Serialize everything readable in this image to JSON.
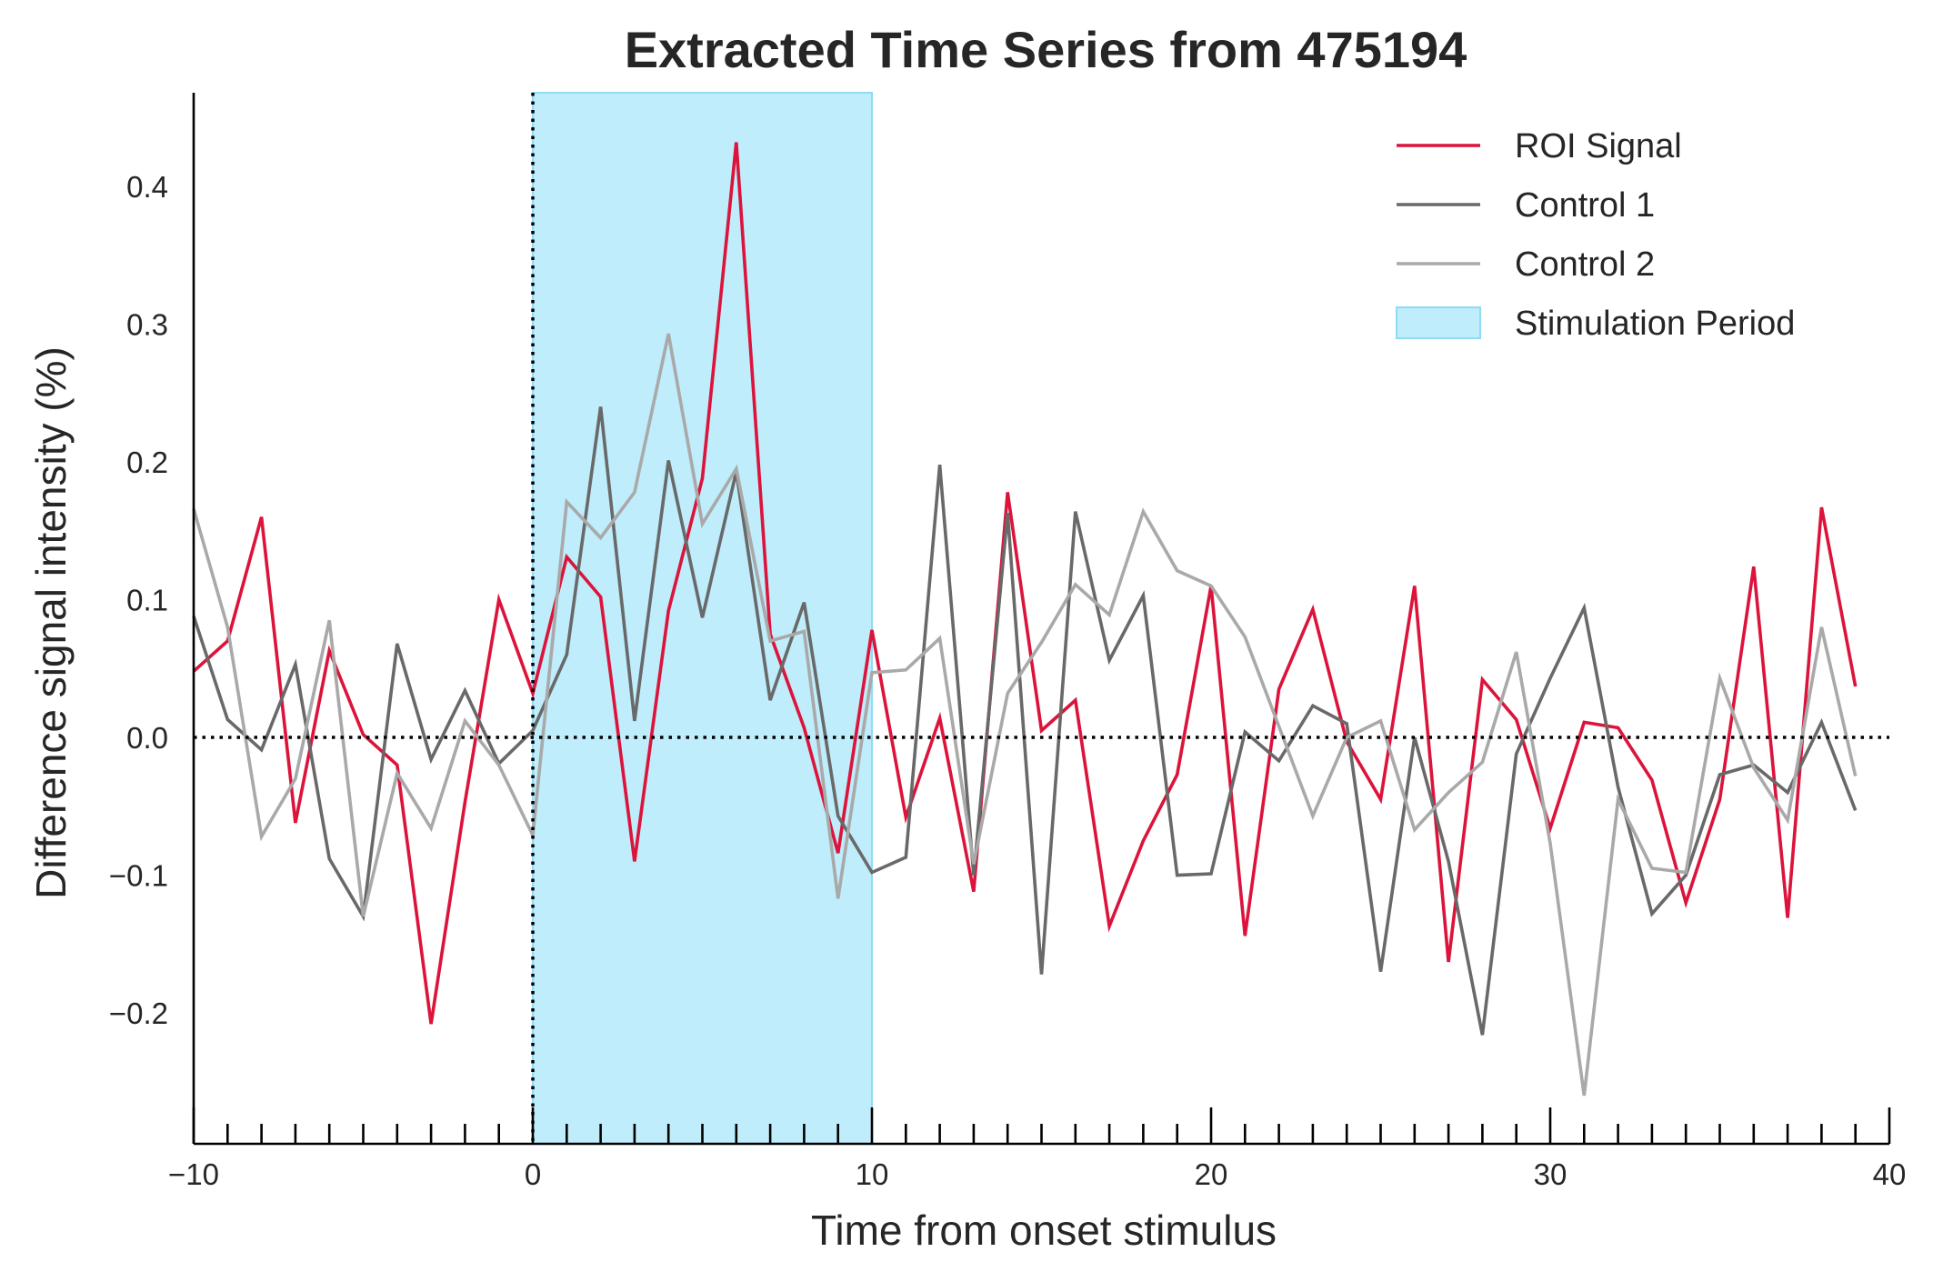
{
  "chart_data": {
    "type": "line",
    "title": "Extracted Time Series from 475194",
    "xlabel": "Time from onset stimulus",
    "ylabel": "Difference signal intensity (%)",
    "xlim": [
      -10,
      40
    ],
    "ylim": [
      -0.295,
      0.468
    ],
    "x_ticks": [
      -10,
      0,
      10,
      20,
      30,
      40
    ],
    "x_tick_labels": [
      "−10",
      "0",
      "10",
      "20",
      "30",
      "40"
    ],
    "y_ticks": [
      -0.2,
      -0.1,
      0.0,
      0.1,
      0.2,
      0.3,
      0.4
    ],
    "y_tick_labels": [
      "−0.2",
      "−0.1",
      "0.0",
      "0.1",
      "0.2",
      "0.3",
      "0.4"
    ],
    "minor_x_ticks_interval": 1,
    "reference_lines": {
      "horizontal_y": 0,
      "vertical_x": 0,
      "style": "dotted",
      "color": "#000000"
    },
    "shaded_region": {
      "label": "Stimulation Period",
      "x_start": 0,
      "x_end": 10,
      "color": "#bfedfb",
      "edge_color": "#8fdcf5"
    },
    "legend_position": "top-right",
    "grid": false,
    "x": [
      -10,
      -9,
      -8,
      -7,
      -6,
      -5,
      -4,
      -3,
      -2,
      -1,
      0,
      1,
      2,
      3,
      4,
      5,
      6,
      7,
      8,
      9,
      10,
      11,
      12,
      13,
      14,
      15,
      16,
      17,
      18,
      19,
      20,
      21,
      22,
      23,
      24,
      25,
      26,
      27,
      28,
      29,
      30,
      31,
      32,
      33,
      34,
      35,
      36,
      37,
      38,
      39
    ],
    "series": [
      {
        "name": "ROI Signal",
        "color": "#dc143c",
        "values": [
          0.048,
          0.07,
          0.16,
          -0.062,
          0.063,
          0.002,
          -0.02,
          -0.208,
          -0.047,
          0.1,
          0.032,
          0.131,
          0.102,
          -0.09,
          0.092,
          0.188,
          0.432,
          0.075,
          0.007,
          -0.084,
          0.078,
          -0.058,
          0.014,
          -0.112,
          0.178,
          0.005,
          0.027,
          -0.137,
          -0.075,
          -0.027,
          0.11,
          -0.144,
          0.035,
          0.093,
          -0.003,
          -0.045,
          0.11,
          -0.163,
          0.042,
          0.013,
          -0.066,
          0.011,
          0.007,
          -0.031,
          -0.12,
          -0.045,
          0.124,
          -0.131,
          0.167,
          0.037
        ]
      },
      {
        "name": "Control 1",
        "color": "#696969",
        "values": [
          0.088,
          0.013,
          -0.009,
          0.053,
          -0.088,
          -0.13,
          0.068,
          -0.016,
          0.034,
          -0.019,
          0.005,
          0.06,
          0.24,
          0.012,
          0.201,
          0.087,
          0.193,
          0.027,
          0.098,
          -0.057,
          -0.098,
          -0.087,
          0.198,
          -0.1,
          0.163,
          -0.172,
          0.164,
          0.056,
          0.103,
          -0.1,
          -0.099,
          0.004,
          -0.017,
          0.023,
          0.01,
          -0.17,
          0.0,
          -0.09,
          -0.216,
          -0.012,
          0.043,
          0.094,
          -0.036,
          -0.128,
          -0.1,
          -0.027,
          -0.02,
          -0.04,
          0.011,
          -0.053
        ]
      },
      {
        "name": "Control 2",
        "color": "#a9a9a9",
        "values": [
          0.166,
          0.08,
          -0.072,
          -0.03,
          0.085,
          -0.13,
          -0.026,
          -0.066,
          0.012,
          -0.02,
          -0.071,
          0.171,
          0.145,
          0.178,
          0.293,
          0.155,
          0.195,
          0.07,
          0.077,
          -0.117,
          0.047,
          0.049,
          0.072,
          -0.092,
          0.032,
          0.069,
          0.111,
          0.089,
          0.164,
          0.121,
          0.11,
          0.073,
          0.008,
          -0.057,
          0.0,
          0.012,
          -0.067,
          -0.04,
          -0.018,
          0.062,
          -0.077,
          -0.26,
          -0.045,
          -0.095,
          -0.098,
          0.043,
          -0.022,
          -0.06,
          0.08,
          -0.028
        ]
      }
    ]
  }
}
